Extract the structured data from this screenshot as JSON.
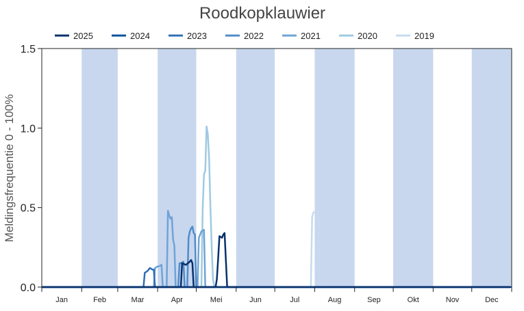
{
  "chart_data": {
    "type": "line",
    "title": "Roodkopklauwier",
    "xlabel": "",
    "ylabel": "Meldingsfrequentie 0 - 100%",
    "ylim": [
      0,
      1.5
    ],
    "yticks": [
      "0.0",
      "0.5",
      "1.0",
      "1.5"
    ],
    "ytick_values": [
      0,
      0.5,
      1.0,
      1.5
    ],
    "x_unit": "day of year",
    "xlim": [
      1,
      365
    ],
    "months": [
      "Jan",
      "Feb",
      "Mar",
      "Apr",
      "Mei",
      "Jun",
      "Jul",
      "Aug",
      "Sep",
      "Okt",
      "Nov",
      "Dec"
    ],
    "month_start_days": [
      1,
      32,
      60,
      91,
      121,
      152,
      182,
      213,
      244,
      274,
      305,
      335,
      366
    ],
    "shaded_months": [
      1,
      3,
      5,
      7,
      9,
      11
    ],
    "shade_color": "#c8d7ee",
    "legend_position": "top",
    "grid": false,
    "series": [
      {
        "name": "2025",
        "color": "#08306b",
        "points": [
          [
            1,
            0
          ],
          [
            109,
            0
          ],
          [
            110,
            0.15
          ],
          [
            113,
            0.14
          ],
          [
            116,
            0.16
          ],
          [
            117,
            0.17
          ],
          [
            118,
            0.15
          ],
          [
            119,
            0
          ],
          [
            136,
            0
          ],
          [
            137,
            0.05
          ],
          [
            138,
            0.18
          ],
          [
            139,
            0.32
          ],
          [
            141,
            0.31
          ],
          [
            142,
            0.33
          ],
          [
            143,
            0.34
          ],
          [
            144,
            0.17
          ],
          [
            145,
            0
          ],
          [
            365,
            0
          ]
        ]
      },
      {
        "name": "2024",
        "color": "#08519c",
        "points": [
          [
            1,
            0
          ],
          [
            365,
            0
          ]
        ]
      },
      {
        "name": "2023",
        "color": "#2e6fb6",
        "points": [
          [
            1,
            0
          ],
          [
            80,
            0
          ],
          [
            81,
            0.09
          ],
          [
            83,
            0.1
          ],
          [
            85,
            0.12
          ],
          [
            87,
            0.11
          ],
          [
            88,
            0.11
          ],
          [
            89,
            0
          ],
          [
            365,
            0
          ]
        ]
      },
      {
        "name": "2022",
        "color": "#4f8bc9",
        "points": [
          [
            1,
            0
          ],
          [
            107,
            0
          ],
          [
            108,
            0.15
          ],
          [
            109,
            0.15
          ],
          [
            111,
            0.16
          ],
          [
            112,
            0
          ],
          [
            114,
            0
          ],
          [
            115,
            0.31
          ],
          [
            116,
            0.35
          ],
          [
            117,
            0.37
          ],
          [
            118,
            0.38
          ],
          [
            119,
            0.34
          ],
          [
            120,
            0.33
          ],
          [
            121,
            0
          ],
          [
            365,
            0
          ]
        ]
      },
      {
        "name": "2021",
        "color": "#6fa3d6",
        "points": [
          [
            1,
            0
          ],
          [
            88,
            0
          ],
          [
            89,
            0.12
          ],
          [
            91,
            0.13
          ],
          [
            92,
            0.13
          ],
          [
            94,
            0.14
          ],
          [
            95,
            0
          ],
          [
            98,
            0
          ],
          [
            99,
            0.48
          ],
          [
            100,
            0.45
          ],
          [
            101,
            0.43
          ],
          [
            102,
            0.44
          ],
          [
            103,
            0.3
          ],
          [
            104,
            0.26
          ],
          [
            105,
            0
          ],
          [
            122,
            0
          ],
          [
            123,
            0.31
          ],
          [
            124,
            0.33
          ],
          [
            125,
            0.35
          ],
          [
            127,
            0.36
          ],
          [
            128,
            0
          ],
          [
            365,
            0
          ]
        ]
      },
      {
        "name": "2020",
        "color": "#9ecae1",
        "points": [
          [
            1,
            0
          ],
          [
            125,
            0
          ],
          [
            126,
            0.5
          ],
          [
            127,
            0.71
          ],
          [
            128,
            0.73
          ],
          [
            129,
            1.01
          ],
          [
            130,
            0.96
          ],
          [
            131,
            0.8
          ],
          [
            132,
            0.5
          ],
          [
            133,
            0.25
          ],
          [
            134,
            0.05
          ],
          [
            135,
            0
          ],
          [
            365,
            0
          ]
        ]
      },
      {
        "name": "2019",
        "color": "#c6dbef",
        "points": [
          [
            1,
            0
          ],
          [
            210,
            0
          ],
          [
            211,
            0.44
          ],
          [
            212,
            0.47
          ],
          [
            213,
            0.47
          ],
          [
            214,
            0.47
          ],
          [
            215,
            0.46
          ],
          [
            216,
            0.45
          ],
          [
            217,
            0
          ],
          [
            365,
            0
          ]
        ]
      }
    ]
  }
}
